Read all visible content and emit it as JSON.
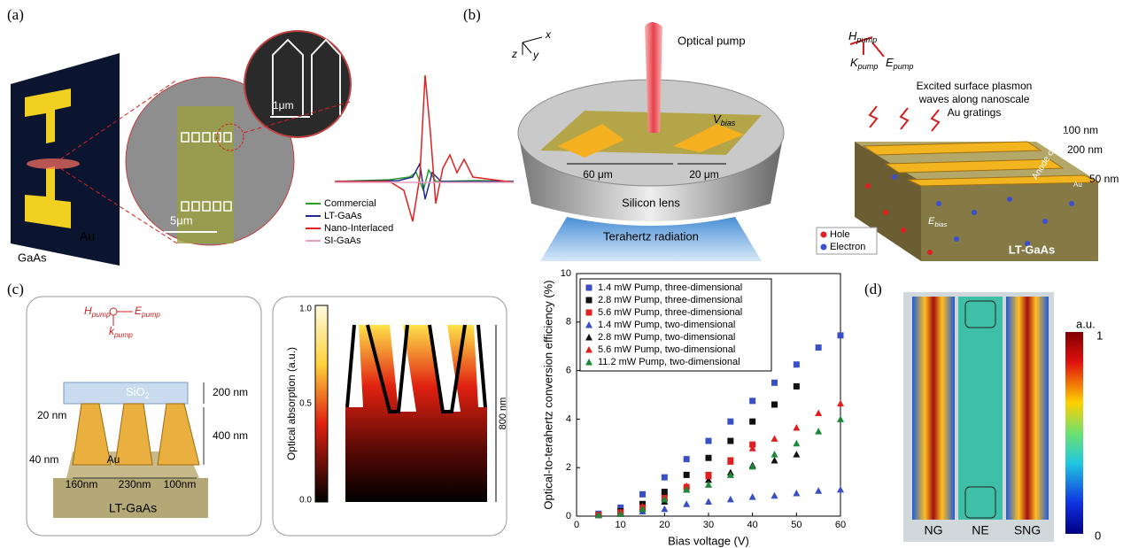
{
  "panel_labels": [
    "(a)",
    "(b)",
    "(c)",
    "(d)"
  ],
  "panel_a": {
    "scale_inset": "1μm",
    "scale_main": "5μm",
    "substrate": "GaAs",
    "metal": "Au",
    "legend": [
      "Commercial",
      "LT-GaAs",
      "Nano-Interlaced",
      "SI-GaAs"
    ]
  },
  "panel_b": {
    "axes": [
      "x",
      "y",
      "z"
    ],
    "optical_pump": "Optical pump",
    "v_bias": {
      "main": "V",
      "sub": "bias"
    },
    "width_1": "60 μm",
    "width_2": "20 μm",
    "lens": "Silicon lens",
    "radiation": "Terahertz radiation",
    "h_pump": {
      "main": "H",
      "sub": "pump"
    },
    "k_pump": {
      "main": "K",
      "sub": "pump"
    },
    "e_pump": {
      "main": "E",
      "sub": "pump"
    },
    "caption": [
      "Excited surface plasmon",
      "waves along nanoscale",
      "Au gratings"
    ],
    "dim_1": "100 nm",
    "dim_2": "200 nm",
    "dim_3": "50 nm",
    "anode": "Anode contact",
    "metal": "Au",
    "legend": [
      "Hole",
      "Electron"
    ],
    "e_bias": {
      "main": "E",
      "sub": "bias"
    },
    "substrate": "LT-GaAs"
  },
  "panel_c": {
    "h_pump": {
      "main": "H",
      "sub": "pump"
    },
    "e_pump": {
      "main": "E",
      "sub": "pump"
    },
    "k_pump": {
      "main": "k",
      "sub": "pump"
    },
    "oxide": {
      "main": "SiO",
      "sub": "2"
    },
    "dims": [
      "200 nm",
      "400 nm",
      "20 nm",
      "40 nm",
      "160nm",
      "230nm",
      "100nm"
    ],
    "metal": "Au",
    "substrate": "LT-GaAs",
    "colorbar_label": "Optical absorption (a.u.)",
    "colorbar_ticks": [
      "1.0",
      "0.5",
      "0.0"
    ],
    "depth": "800 nm"
  },
  "panel_d": {
    "unit": "a.u.",
    "max": "1",
    "min": "0",
    "labels": [
      "NG",
      "NE",
      "SNG"
    ]
  },
  "chart_data": {
    "type": "scatter",
    "x_label": "Bias voltage (V)",
    "y_label": "Optical-to-terahertz conversion efficiency (%)",
    "xlim": [
      0,
      60
    ],
    "ylim": [
      0,
      10
    ],
    "xticks": [
      0,
      10,
      20,
      30,
      40,
      50,
      60
    ],
    "yticks": [
      0,
      2,
      4,
      6,
      8,
      10
    ],
    "grid": false,
    "legend": "upper-left",
    "series": [
      {
        "name": "1.4 mW Pump, three-dimensional",
        "color": "#3a4fc4",
        "marker": "square",
        "x": [
          5,
          10,
          15,
          20,
          25,
          30,
          35,
          40,
          45,
          50,
          55,
          60
        ],
        "values": [
          0.1,
          0.35,
          0.9,
          1.6,
          2.35,
          3.1,
          3.9,
          4.75,
          5.5,
          6.25,
          6.95,
          7.45
        ]
      },
      {
        "name": "2.8 mW Pump, three-dimensional",
        "color": "#111111",
        "marker": "square",
        "x": [
          5,
          10,
          15,
          20,
          25,
          30,
          35,
          40,
          45,
          50
        ],
        "values": [
          0.05,
          0.2,
          0.5,
          1.0,
          1.7,
          2.4,
          3.1,
          3.9,
          4.6,
          5.35
        ]
      },
      {
        "name": "5.6 mW Pump, three-dimensional",
        "color": "#e02020",
        "marker": "square",
        "x": [
          5,
          10,
          15,
          20,
          25,
          30,
          35,
          40
        ],
        "values": [
          0.05,
          0.15,
          0.35,
          0.75,
          1.2,
          1.7,
          2.3,
          2.95
        ]
      },
      {
        "name": "1.4 mW Pump, two-dimensional",
        "color": "#3a4fc4",
        "marker": "triangle",
        "x": [
          5,
          10,
          15,
          20,
          25,
          30,
          35,
          40,
          45,
          50,
          55,
          60
        ],
        "values": [
          0.05,
          0.1,
          0.2,
          0.3,
          0.5,
          0.6,
          0.7,
          0.8,
          0.85,
          0.95,
          1.05,
          1.1
        ]
      },
      {
        "name": "2.8 mW Pump, two-dimensional",
        "color": "#111111",
        "marker": "triangle",
        "x": [
          5,
          10,
          15,
          20,
          25,
          30,
          35,
          40,
          45,
          50
        ],
        "values": [
          0.05,
          0.1,
          0.3,
          0.6,
          1.1,
          1.5,
          1.8,
          2.1,
          2.3,
          2.55
        ]
      },
      {
        "name": "5.6 mW Pump, two-dimensional",
        "color": "#e02020",
        "marker": "triangle",
        "x": [
          5,
          10,
          15,
          20,
          25,
          30,
          35,
          40,
          45,
          50,
          55,
          60
        ],
        "values": [
          0.05,
          0.15,
          0.4,
          0.75,
          1.25,
          1.65,
          2.25,
          2.8,
          3.2,
          3.65,
          4.25,
          4.65
        ]
      },
      {
        "name": "11.2 mW Pump, two-dimensional",
        "color": "#1a8a3a",
        "marker": "triangle",
        "x": [
          5,
          10,
          15,
          20,
          25,
          30,
          35,
          40,
          45,
          50,
          55,
          60
        ],
        "values": [
          0.05,
          0.1,
          0.3,
          0.7,
          1.1,
          1.3,
          1.7,
          2.05,
          2.55,
          3.0,
          3.5,
          4.0
        ]
      }
    ]
  }
}
